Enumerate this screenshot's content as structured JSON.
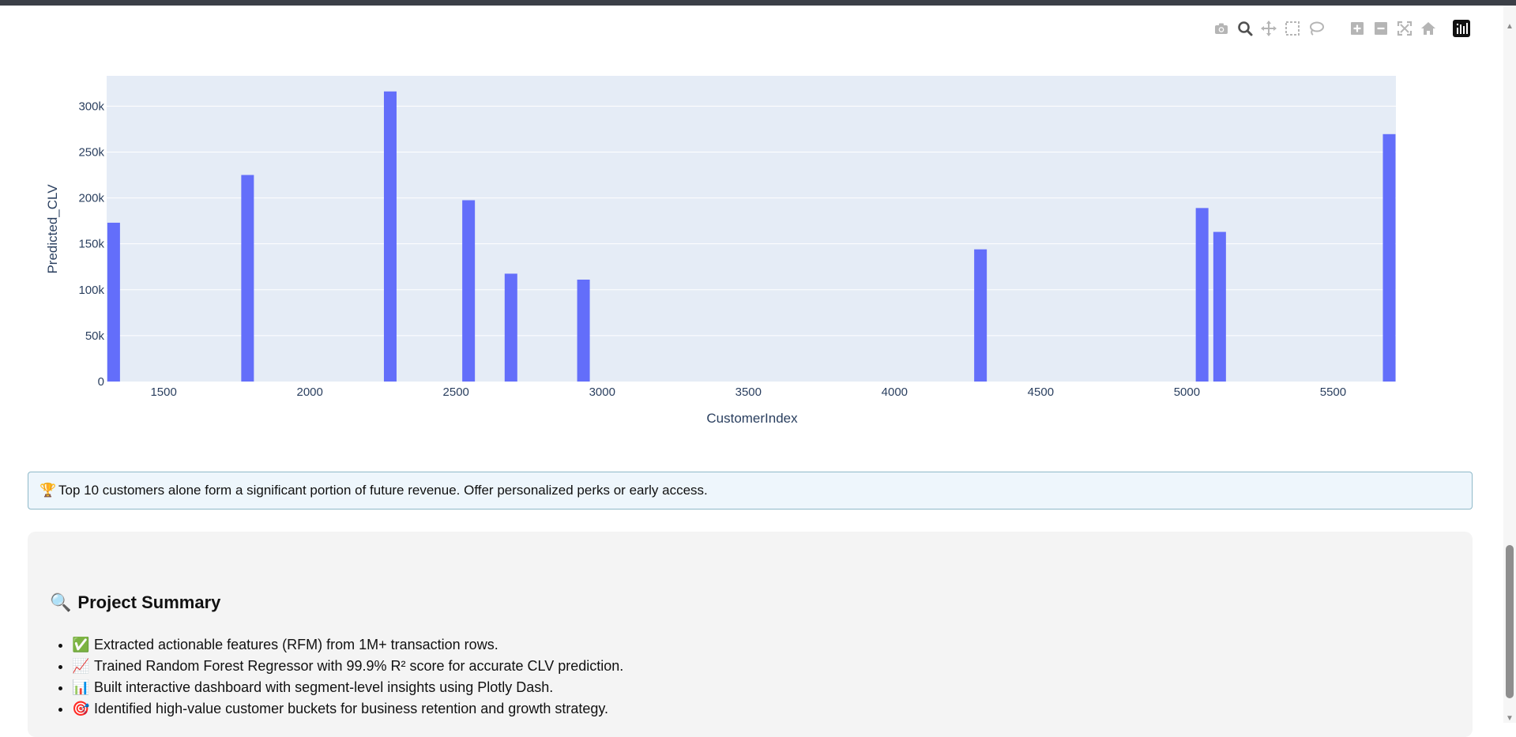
{
  "modebar": {
    "buttons": [
      {
        "name": "camera-icon",
        "x": 0
      },
      {
        "name": "zoom-icon",
        "x": 30
      },
      {
        "name": "pan-icon",
        "x": 60
      },
      {
        "name": "box-select-icon",
        "x": 90
      },
      {
        "name": "lasso-select-icon",
        "x": 120
      },
      {
        "name": "zoom-in-icon",
        "x": 172
      },
      {
        "name": "zoom-out-icon",
        "x": 202
      },
      {
        "name": "autoscale-icon",
        "x": 232
      },
      {
        "name": "reset-axes-icon",
        "x": 262
      },
      {
        "name": "plotly-logo-icon",
        "x": 304
      }
    ]
  },
  "chart_data": {
    "type": "bar",
    "xlabel": "CustomerIndex",
    "ylabel": "Predicted_CLV",
    "x_ticks": [
      1500,
      2000,
      2500,
      3000,
      3500,
      4000,
      4500,
      5000,
      5500
    ],
    "x_tick_labels": [
      "1500",
      "2000",
      "2500",
      "3000",
      "3500",
      "4000",
      "4500",
      "5000",
      "5500"
    ],
    "y_ticks": [
      0,
      50000,
      100000,
      150000,
      200000,
      250000,
      300000
    ],
    "y_tick_labels": [
      "0",
      "50k",
      "100k",
      "150k",
      "200k",
      "250k",
      "300k"
    ],
    "x": [
      1329,
      1787,
      2275,
      2543,
      2688,
      2936,
      4294,
      5052,
      5112,
      5692
    ],
    "values": [
      173000,
      225000,
      316000,
      197500,
      117500,
      111000,
      144000,
      189000,
      163000,
      269500
    ],
    "ylim": [
      0,
      333000
    ],
    "xlim": [
      1305,
      5715
    ],
    "grid": true,
    "bar_color": "#636efa",
    "plot_bg": "#e5ecf6"
  },
  "insight": {
    "emoji": "🏆",
    "text": "Top 10 customers alone form a significant portion of future revenue. Offer personalized perks or early access."
  },
  "summary": {
    "title_emoji": "🔍",
    "title": "Project Summary",
    "items": [
      {
        "emoji": "✅",
        "text": "Extracted actionable features (RFM) from 1M+ transaction rows."
      },
      {
        "emoji": "📈",
        "text": "Trained Random Forest Regressor with 99.9% R² score for accurate CLV prediction."
      },
      {
        "emoji": "📊",
        "text": "Built interactive dashboard with segment-level insights using Plotly Dash."
      },
      {
        "emoji": "🎯",
        "text": "Identified high-value customer buckets for business retention and growth strategy."
      }
    ]
  }
}
